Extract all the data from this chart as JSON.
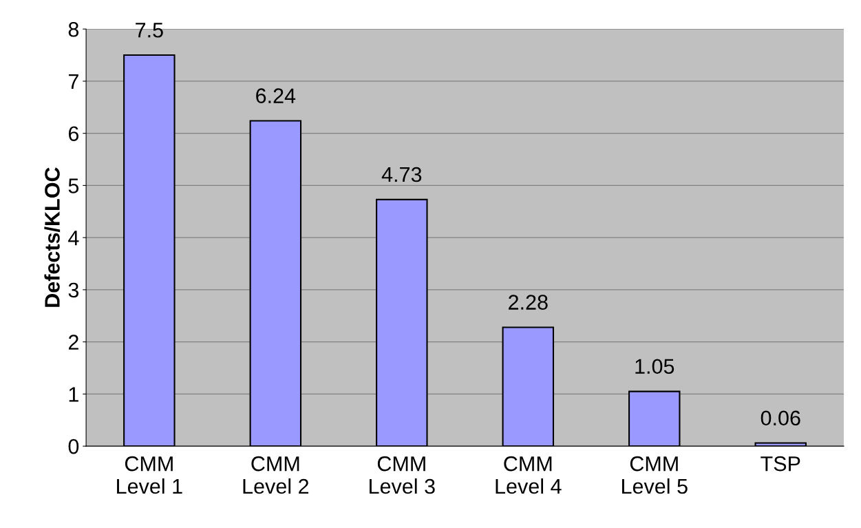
{
  "chart_data": {
    "type": "bar",
    "ylabel": "Defects/KLOC",
    "categories": [
      "CMM\nLevel 1",
      "CMM\nLevel 2",
      "CMM\nLevel 3",
      "CMM\nLevel 4",
      "CMM\nLevel 5",
      "TSP"
    ],
    "values": [
      7.5,
      6.24,
      4.73,
      2.28,
      1.05,
      0.06
    ],
    "color": "#9999ff",
    "ylim": [
      0,
      8
    ],
    "yticks": [
      0,
      1,
      2,
      3,
      4,
      5,
      6,
      7,
      8
    ],
    "grid": "y",
    "data_labels": true
  }
}
